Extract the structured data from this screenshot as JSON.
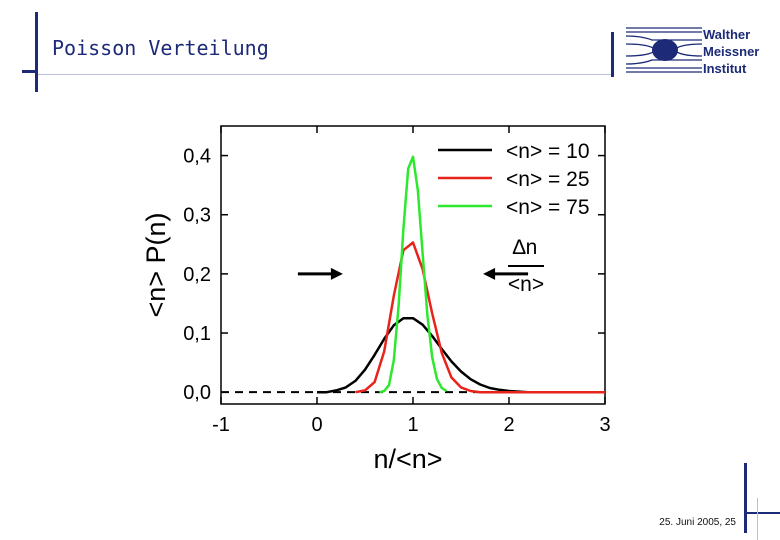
{
  "slide": {
    "title": "Poisson Verteilung",
    "footer": "25. Juni 2005, 25",
    "logo_lines": [
      "Walther",
      "Meissner",
      "Institut"
    ]
  },
  "colors": {
    "accent": "#1c2a78",
    "series": [
      "#000000",
      "#e8231c",
      "#2ee82e"
    ]
  },
  "chart_data": {
    "type": "line",
    "xlabel": "n/<n>",
    "ylabel": "<n> P(n)",
    "xlim": [
      -1,
      3
    ],
    "ylim": [
      -0.02,
      0.45
    ],
    "x_ticks": [
      -1,
      0,
      1,
      2,
      3
    ],
    "x_tick_labels": [
      "-1",
      "0",
      "1",
      "2",
      "3"
    ],
    "y_ticks": [
      0.0,
      0.1,
      0.2,
      0.3,
      0.4
    ],
    "y_tick_labels": [
      "0,0",
      "0,1",
      "0,2",
      "0,3",
      "0,4"
    ],
    "baseline": {
      "y": 0.0,
      "style": "dashed"
    },
    "legend_position": "top-right",
    "series": [
      {
        "name": "<n> = 10",
        "mean_n": 10,
        "color": "#000000",
        "x": [
          0.0,
          0.1,
          0.2,
          0.3,
          0.4,
          0.5,
          0.6,
          0.7,
          0.8,
          0.9,
          1.0,
          1.1,
          1.2,
          1.3,
          1.4,
          1.5,
          1.6,
          1.7,
          1.8,
          1.9,
          2.0,
          2.1,
          2.2,
          2.3,
          2.4,
          2.5,
          2.6,
          2.7,
          2.8,
          2.9,
          3.0
        ],
        "y": [
          0.0,
          0.0,
          0.003,
          0.008,
          0.019,
          0.038,
          0.063,
          0.09,
          0.113,
          0.125,
          0.125,
          0.114,
          0.095,
          0.073,
          0.052,
          0.035,
          0.022,
          0.013,
          0.007,
          0.004,
          0.002,
          0.001,
          0.0,
          0.0,
          0.0,
          0.0,
          0.0,
          0.0,
          0.0,
          0.0,
          0.0
        ]
      },
      {
        "name": "<n> = 25",
        "mean_n": 25,
        "color": "#e8231c",
        "x": [
          0.4,
          0.5,
          0.6,
          0.7,
          0.8,
          0.9,
          1.0,
          1.1,
          1.2,
          1.3,
          1.4,
          1.5,
          1.6,
          1.7,
          1.8,
          1.9,
          2.0,
          2.1,
          2.2,
          2.3,
          2.4,
          2.5,
          2.6,
          2.7,
          2.8,
          2.9,
          3.0
        ],
        "y": [
          0.0,
          0.003,
          0.017,
          0.069,
          0.163,
          0.24,
          0.253,
          0.208,
          0.133,
          0.066,
          0.025,
          0.008,
          0.002,
          0.0,
          0.0,
          0.0,
          0.0,
          0.0,
          0.0,
          0.0,
          0.0,
          0.0,
          0.0,
          0.0,
          0.0,
          0.0,
          0.0
        ]
      },
      {
        "name": "<n> = 75",
        "mean_n": 75,
        "color": "#2ee82e",
        "x": [
          0.65,
          0.7,
          0.75,
          0.8,
          0.85,
          0.9,
          0.95,
          1.0,
          1.05,
          1.1,
          1.15,
          1.2,
          1.25,
          1.3,
          1.35
        ],
        "y": [
          0.0,
          0.002,
          0.012,
          0.054,
          0.146,
          0.276,
          0.378,
          0.398,
          0.342,
          0.235,
          0.13,
          0.059,
          0.022,
          0.007,
          0.002
        ]
      }
    ],
    "annotation": {
      "numerator": "∆n",
      "denominator": "<n>",
      "at_y": 0.2,
      "arrow_from_x": 0.27,
      "arrow_to_x": 1.73
    }
  }
}
